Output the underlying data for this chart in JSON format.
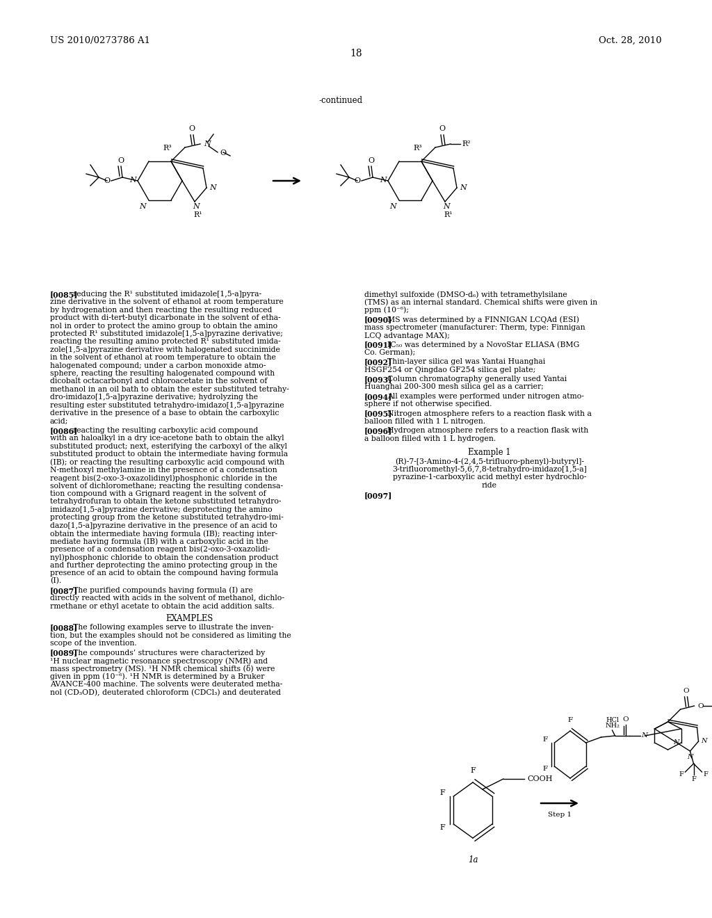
{
  "header_left": "US 2010/0273786 A1",
  "header_right": "Oct. 28, 2010",
  "page_number": "18",
  "continued_label": "-continued",
  "bg": "#ffffff",
  "fg": "#000000"
}
